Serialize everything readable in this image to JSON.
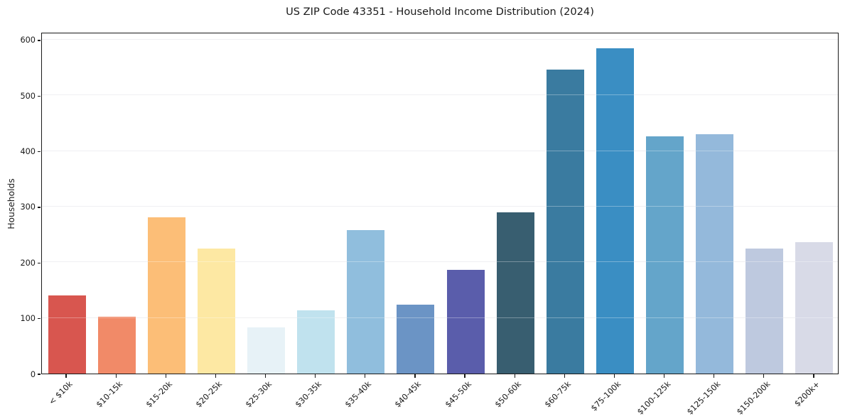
{
  "chart_data": {
    "type": "bar",
    "title": "US ZIP Code 43351 - Household Income Distribution (2024)",
    "xlabel": "",
    "ylabel": "Households",
    "categories": [
      "< $10k",
      "$10-15k",
      "$15-20k",
      "$20-25k",
      "$25-30k",
      "$30-35k",
      "$35-40k",
      "$40-45k",
      "$45-50k",
      "$50-60k",
      "$60-75k",
      "$75-100k",
      "$100-125k",
      "$125-150k",
      "$150-200k",
      "$200k+"
    ],
    "values": [
      140,
      102,
      281,
      225,
      83,
      114,
      258,
      124,
      186,
      290,
      546,
      585,
      426,
      430,
      225,
      236
    ],
    "bar_colors": [
      "#d8564f",
      "#f18a68",
      "#fcbe77",
      "#fde8a3",
      "#e7f2f7",
      "#c0e2ee",
      "#90bedd",
      "#6b94c5",
      "#5a5dab",
      "#385e70",
      "#3a7ba0",
      "#3a8ec3",
      "#64a5ca",
      "#94b9db",
      "#bec9df",
      "#d8dae7"
    ],
    "yticks": [
      0,
      100,
      200,
      300,
      400,
      500,
      600
    ],
    "ylim": [
      0,
      614
    ],
    "grid": "horizontal",
    "x_tick_rotation": 45,
    "legend": "none"
  }
}
